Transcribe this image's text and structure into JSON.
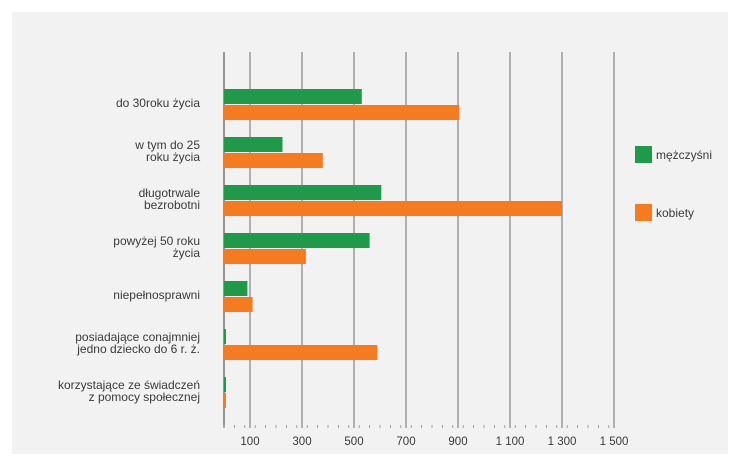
{
  "chart_data": {
    "type": "bar",
    "orientation": "horizontal",
    "categories": [
      [
        "do 30roku życia"
      ],
      [
        "w tym do 25",
        "roku życia"
      ],
      [
        "długotrwale",
        "bezrobotni"
      ],
      [
        "powyżej 50 roku",
        "życia"
      ],
      [
        "niepełnosprawni"
      ],
      [
        "posiadające  conajmniej",
        "jedno dziecko do 6 r. ż."
      ],
      [
        "korzystające ze świadczeń",
        "z pomocy społecznej"
      ]
    ],
    "series": [
      {
        "name": "mężczyśni",
        "color": "#1f9a48",
        "values": [
          530,
          225,
          605,
          560,
          90,
          4,
          4
        ]
      },
      {
        "name": "kobiety",
        "color": "#f47b20",
        "values": [
          905,
          380,
          1300,
          315,
          110,
          590,
          4
        ]
      }
    ],
    "xticks": [
      100,
      300,
      500,
      700,
      900,
      1100,
      1300,
      1500
    ],
    "xtick_labels": [
      "100",
      "300",
      "500",
      "700",
      "900",
      "1 100",
      "1 300",
      "1 500"
    ],
    "xlim": [
      0,
      1400
    ],
    "grid": "vertical",
    "legend": "right"
  }
}
